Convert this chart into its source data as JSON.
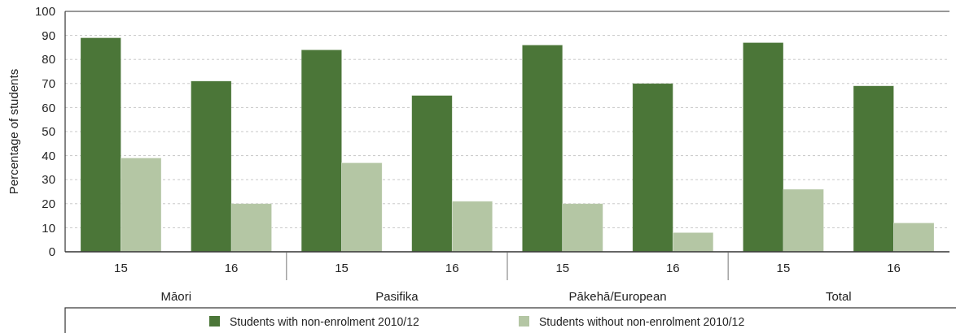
{
  "chart_data": {
    "type": "bar",
    "ylabel": "Percentage of students",
    "categories": [
      "15",
      "16",
      "15",
      "16",
      "15",
      "16",
      "15",
      "16"
    ],
    "series": [
      {
        "name": "Students with non-enrolment 2010/12",
        "color": "#4b7638",
        "values": [
          89,
          71,
          84,
          65,
          86,
          70,
          87,
          69
        ]
      },
      {
        "name": "Students without non-enrolment 2010/12",
        "color": "#b4c6a4",
        "values": [
          39,
          20,
          37,
          21,
          20,
          8,
          26,
          12
        ]
      }
    ],
    "ylim": [
      0,
      100
    ],
    "yticks": [
      0,
      10,
      20,
      30,
      40,
      50,
      60,
      70,
      80,
      90,
      100
    ],
    "grid": "y",
    "legend": "bottom",
    "annotations": [
      "Māori",
      "Pasifika",
      "Pākehā/European",
      "Total"
    ]
  }
}
